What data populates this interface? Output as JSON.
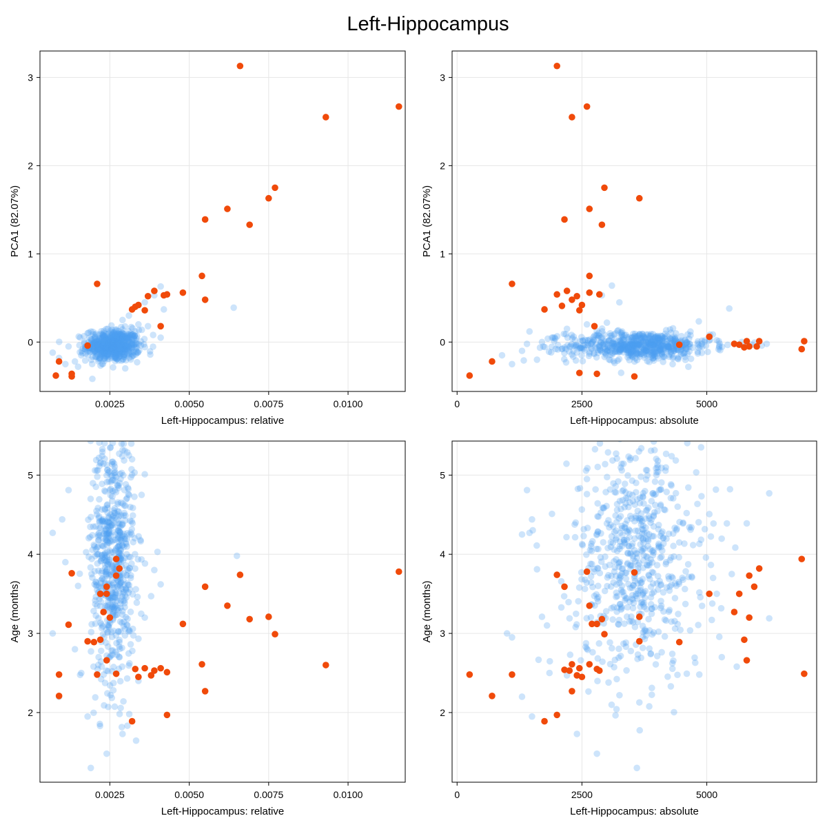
{
  "figure": {
    "title": "Left-Hippocampus"
  },
  "colors": {
    "background_points": "#4c9ef2",
    "outlier_points": "#f04a0a"
  },
  "chart_data": [
    {
      "type": "scatter",
      "id": "p1",
      "xlabel": "Left-Hippocampus: relative",
      "ylabel": "PCA1 (82.07%)",
      "xlim": [
        0.0003,
        0.0118
      ],
      "ylim": [
        -0.56,
        3.3
      ],
      "xticks": [
        0.0025,
        0.005,
        0.0075,
        0.01
      ],
      "xticklabels": [
        "0.0025",
        "0.0050",
        "0.0075",
        "0.0100"
      ],
      "yticks": [
        0,
        1,
        2,
        3
      ],
      "yticklabels": [
        "0",
        "1",
        "2",
        "3"
      ],
      "grid": true,
      "series": [
        {
          "role": "background",
          "cloud": {
            "n": 620,
            "x_mean": 0.0026,
            "x_sd": 0.00042,
            "y_mean": -0.04,
            "y_sd": 0.09
          },
          "extra": [
            [
              0.0064,
              0.39
            ],
            [
              0.0041,
              0.63
            ],
            [
              0.0039,
              0.53
            ],
            [
              0.0036,
              0.45
            ],
            [
              0.0042,
              0.37
            ],
            [
              0.0031,
              0.3
            ],
            [
              0.0009,
              -0.18
            ],
            [
              0.0012,
              -0.05
            ],
            [
              0.0007,
              -0.12
            ],
            [
              0.0015,
              -0.28
            ],
            [
              0.0014,
              -0.22
            ],
            [
              0.0018,
              0.1
            ],
            [
              0.0034,
              0.2
            ],
            [
              0.0037,
              0.18
            ],
            [
              0.0033,
              0.12
            ],
            [
              0.0011,
              -0.25
            ],
            [
              0.0016,
              -0.15
            ],
            [
              0.0041,
              0.05
            ],
            [
              0.0029,
              0.25
            ]
          ]
        },
        {
          "role": "highlight",
          "points": [
            [
              0.0066,
              3.13
            ],
            [
              0.0116,
              2.67
            ],
            [
              0.0093,
              2.55
            ],
            [
              0.0077,
              1.75
            ],
            [
              0.0075,
              1.63
            ],
            [
              0.0062,
              1.51
            ],
            [
              0.0055,
              1.39
            ],
            [
              0.0069,
              1.33
            ],
            [
              0.0054,
              0.75
            ],
            [
              0.0021,
              0.66
            ],
            [
              0.0048,
              0.56
            ],
            [
              0.0039,
              0.58
            ],
            [
              0.0043,
              0.54
            ],
            [
              0.0042,
              0.53
            ],
            [
              0.0037,
              0.52
            ],
            [
              0.0034,
              0.42
            ],
            [
              0.0033,
              0.4
            ],
            [
              0.0032,
              0.37
            ],
            [
              0.0036,
              0.36
            ],
            [
              0.0055,
              0.48
            ],
            [
              0.0041,
              0.18
            ],
            [
              0.0018,
              -0.04
            ],
            [
              0.0009,
              -0.22
            ],
            [
              0.0013,
              -0.36
            ],
            [
              0.0013,
              -0.39
            ],
            [
              0.0008,
              -0.38
            ]
          ]
        }
      ]
    },
    {
      "type": "scatter",
      "id": "p2",
      "xlabel": "Left-Hippocampus: absolute",
      "ylabel": "PCA1 (82.07%)",
      "xlim": [
        -100,
        7200
      ],
      "ylim": [
        -0.56,
        3.3
      ],
      "xticks": [
        0,
        2500,
        5000
      ],
      "xticklabels": [
        "0",
        "2500",
        "5000"
      ],
      "yticks": [
        0,
        1,
        2,
        3
      ],
      "yticklabels": [
        "0",
        "1",
        "2",
        "3"
      ],
      "grid": true,
      "series": [
        {
          "role": "background",
          "cloud": {
            "n": 650,
            "x_mean": 3650,
            "x_sd": 720,
            "y_mean": -0.04,
            "y_sd": 0.08
          },
          "extra": [
            [
              3100,
              0.64
            ],
            [
              2900,
              0.53
            ],
            [
              3250,
              0.45
            ],
            [
              5450,
              0.38
            ],
            [
              6200,
              -0.02
            ],
            [
              5900,
              -0.03
            ],
            [
              5700,
              0.0
            ],
            [
              6100,
              -0.04
            ],
            [
              1300,
              -0.1
            ],
            [
              1450,
              0.12
            ],
            [
              1600,
              -0.2
            ],
            [
              1900,
              0.05
            ],
            [
              1100,
              -0.25
            ],
            [
              900,
              -0.15
            ],
            [
              2200,
              0.15
            ],
            [
              2100,
              -0.08
            ],
            [
              4900,
              -0.02
            ],
            [
              5200,
              0.02
            ],
            [
              2600,
              0.2
            ],
            [
              3000,
              0.22
            ],
            [
              1700,
              0.0
            ]
          ]
        },
        {
          "role": "highlight",
          "points": [
            [
              2000,
              3.13
            ],
            [
              2600,
              2.67
            ],
            [
              2300,
              2.55
            ],
            [
              2950,
              1.75
            ],
            [
              3650,
              1.63
            ],
            [
              2650,
              1.51
            ],
            [
              2150,
              1.39
            ],
            [
              2900,
              1.33
            ],
            [
              2650,
              0.75
            ],
            [
              1100,
              0.66
            ],
            [
              2200,
              0.58
            ],
            [
              2650,
              0.56
            ],
            [
              2000,
              0.54
            ],
            [
              2850,
              0.54
            ],
            [
              2400,
              0.52
            ],
            [
              2300,
              0.48
            ],
            [
              2500,
              0.42
            ],
            [
              2100,
              0.41
            ],
            [
              1750,
              0.37
            ],
            [
              2450,
              0.36
            ],
            [
              2750,
              0.18
            ],
            [
              5050,
              0.06
            ],
            [
              6950,
              0.01
            ],
            [
              5800,
              0.01
            ],
            [
              6050,
              0.01
            ],
            [
              5550,
              -0.02
            ],
            [
              5650,
              -0.03
            ],
            [
              4450,
              -0.03
            ],
            [
              5850,
              -0.05
            ],
            [
              5750,
              -0.06
            ],
            [
              6000,
              -0.05
            ],
            [
              6900,
              -0.08
            ],
            [
              700,
              -0.22
            ],
            [
              2450,
              -0.35
            ],
            [
              2800,
              -0.36
            ],
            [
              250,
              -0.38
            ],
            [
              3550,
              -0.39
            ]
          ]
        }
      ]
    },
    {
      "type": "scatter",
      "id": "p3",
      "xlabel": "Left-Hippocampus: relative",
      "ylabel": "Age (months)",
      "xlim": [
        0.0003,
        0.0118
      ],
      "ylim": [
        1.12,
        5.43
      ],
      "xticks": [
        0.0025,
        0.005,
        0.0075,
        0.01
      ],
      "xticklabels": [
        "0.0025",
        "0.0050",
        "0.0075",
        "0.0100"
      ],
      "yticks": [
        2,
        3,
        4,
        5
      ],
      "yticklabels": [
        "2",
        "3",
        "4",
        "5"
      ],
      "grid": true,
      "series": [
        {
          "role": "background",
          "cloud": {
            "n": 640,
            "x_mean": 0.0026,
            "x_sd": 0.00035,
            "y_mean": 3.95,
            "y_sd": 0.8
          },
          "extra": [
            [
              0.0019,
              1.3
            ],
            [
              0.0024,
              1.48
            ],
            [
              0.0029,
              1.73
            ],
            [
              0.0018,
              1.95
            ],
            [
              0.0009,
              2.2
            ],
            [
              0.0007,
              3.0
            ],
            [
              0.0007,
              4.27
            ],
            [
              0.001,
              4.44
            ],
            [
              0.0012,
              4.81
            ],
            [
              0.0065,
              3.98
            ],
            [
              0.004,
              4.03
            ],
            [
              0.0041,
              3.62
            ],
            [
              0.0038,
              3.47
            ],
            [
              0.0036,
              5.01
            ],
            [
              0.0035,
              4.75
            ],
            [
              0.0011,
              3.9
            ],
            [
              0.0015,
              3.6
            ],
            [
              0.0014,
              2.8
            ],
            [
              0.0016,
              2.5
            ],
            [
              0.0034,
              2.4
            ],
            [
              0.0036,
              3.2
            ],
            [
              0.0039,
              3.8
            ],
            [
              0.0032,
              5.2
            ],
            [
              0.0022,
              5.15
            ]
          ]
        },
        {
          "role": "highlight",
          "points": [
            [
              0.0116,
              3.78
            ],
            [
              0.0066,
              3.74
            ],
            [
              0.0027,
              3.94
            ],
            [
              0.0013,
              3.76
            ],
            [
              0.0028,
              3.82
            ],
            [
              0.0027,
              3.73
            ],
            [
              0.0055,
              3.59
            ],
            [
              0.0024,
              3.59
            ],
            [
              0.0024,
              3.5
            ],
            [
              0.0022,
              3.5
            ],
            [
              0.0062,
              3.35
            ],
            [
              0.0023,
              3.27
            ],
            [
              0.0075,
              3.21
            ],
            [
              0.0025,
              3.2
            ],
            [
              0.0069,
              3.18
            ],
            [
              0.0048,
              3.12
            ],
            [
              0.0012,
              3.11
            ],
            [
              0.0077,
              2.99
            ],
            [
              0.0022,
              2.92
            ],
            [
              0.0018,
              2.9
            ],
            [
              0.002,
              2.89
            ],
            [
              0.0024,
              2.66
            ],
            [
              0.0054,
              2.61
            ],
            [
              0.0093,
              2.6
            ],
            [
              0.0036,
              2.56
            ],
            [
              0.0041,
              2.56
            ],
            [
              0.0033,
              2.55
            ],
            [
              0.0039,
              2.53
            ],
            [
              0.0043,
              2.51
            ],
            [
              0.0027,
              2.49
            ],
            [
              0.0021,
              2.48
            ],
            [
              0.0009,
              2.48
            ],
            [
              0.0038,
              2.47
            ],
            [
              0.0034,
              2.45
            ],
            [
              0.0055,
              2.27
            ],
            [
              0.0009,
              2.21
            ],
            [
              0.0043,
              1.97
            ],
            [
              0.0032,
              1.89
            ]
          ]
        }
      ]
    },
    {
      "type": "scatter",
      "id": "p4",
      "xlabel": "Left-Hippocampus: absolute",
      "ylabel": "Age (months)",
      "xlim": [
        -100,
        7200
      ],
      "ylim": [
        1.12,
        5.43
      ],
      "xticks": [
        0,
        2500,
        5000
      ],
      "xticklabels": [
        "0",
        "2500",
        "5000"
      ],
      "yticks": [
        2,
        3,
        4,
        5
      ],
      "yticklabels": [
        "2",
        "3",
        "4",
        "5"
      ],
      "grid": true,
      "series": [
        {
          "role": "background",
          "cloud": {
            "n": 640,
            "x_mean": 3600,
            "x_sd": 650,
            "y_mean": 3.95,
            "y_sd": 0.75
          },
          "extra": [
            [
              3600,
              1.3
            ],
            [
              2400,
              1.73
            ],
            [
              2800,
              1.48
            ],
            [
              1500,
              1.95
            ],
            [
              1300,
              2.2
            ],
            [
              1000,
              3.0
            ],
            [
              1100,
              2.95
            ],
            [
              1400,
              4.81
            ],
            [
              1450,
              4.27
            ],
            [
              1500,
              4.44
            ],
            [
              1300,
              4.25
            ],
            [
              1900,
              4.51
            ],
            [
              2600,
              4.76
            ],
            [
              2600,
              4.95
            ],
            [
              6250,
              4.77
            ],
            [
              6250,
              3.19
            ],
            [
              5500,
              3.75
            ],
            [
              5800,
              4.39
            ],
            [
              5100,
              3.17
            ],
            [
              5200,
              3.5
            ],
            [
              5600,
              2.58
            ],
            [
              5300,
              2.7
            ],
            [
              4850,
              2.48
            ],
            [
              1700,
              3.21
            ],
            [
              1800,
              3.1
            ],
            [
              1600,
              3.81
            ],
            [
              2200,
              2.47
            ],
            [
              1850,
              2.5
            ]
          ]
        },
        {
          "role": "highlight",
          "points": [
            [
              6900,
              3.94
            ],
            [
              6050,
              3.82
            ],
            [
              5850,
              3.73
            ],
            [
              2000,
              3.74
            ],
            [
              2600,
              3.78
            ],
            [
              3550,
              3.77
            ],
            [
              2150,
              3.59
            ],
            [
              5950,
              3.59
            ],
            [
              5650,
              3.5
            ],
            [
              5050,
              3.5
            ],
            [
              2650,
              3.35
            ],
            [
              5550,
              3.27
            ],
            [
              3650,
              3.21
            ],
            [
              5850,
              3.2
            ],
            [
              2900,
              3.18
            ],
            [
              2700,
              3.12
            ],
            [
              2800,
              3.12
            ],
            [
              2950,
              2.99
            ],
            [
              5750,
              2.92
            ],
            [
              3650,
              2.9
            ],
            [
              4450,
              2.89
            ],
            [
              5800,
              2.66
            ],
            [
              2300,
              2.61
            ],
            [
              2650,
              2.61
            ],
            [
              2800,
              2.55
            ],
            [
              2450,
              2.56
            ],
            [
              2850,
              2.53
            ],
            [
              2150,
              2.54
            ],
            [
              2250,
              2.53
            ],
            [
              6950,
              2.49
            ],
            [
              2400,
              2.47
            ],
            [
              1100,
              2.48
            ],
            [
              250,
              2.48
            ],
            [
              2500,
              2.45
            ],
            [
              2300,
              2.27
            ],
            [
              700,
              2.21
            ],
            [
              2000,
              1.97
            ],
            [
              1750,
              1.89
            ]
          ]
        }
      ]
    }
  ]
}
